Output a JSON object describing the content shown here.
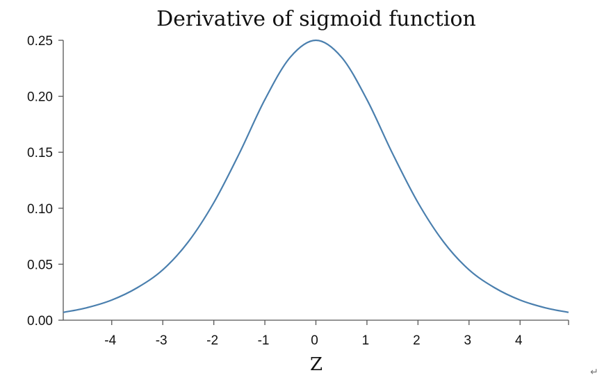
{
  "chart_data": {
    "type": "line",
    "title": "Derivative of sigmoid function",
    "xlabel": "Z",
    "ylabel": "",
    "xlim": [
      -4.95,
      4.95
    ],
    "ylim": [
      0,
      0.25
    ],
    "xticks": [
      -4,
      -3,
      -2,
      -1,
      0,
      1,
      2,
      3,
      4
    ],
    "xtick_labels": [
      "-4",
      "-3",
      "-2",
      "-1",
      "0",
      "1",
      "2",
      "3",
      "4"
    ],
    "yticks": [
      0,
      0.05,
      0.1,
      0.15,
      0.2,
      0.25
    ],
    "ytick_labels": [
      "0.00",
      "0.05",
      "0.10",
      "0.15",
      "0.20",
      "0.25"
    ],
    "grid": false,
    "line_color": "#4a7fae",
    "series": [
      {
        "x": [
          -4.95,
          -4.5,
          -4,
          -3.5,
          -3,
          -2.5,
          -2,
          -1.5,
          -1,
          -0.5,
          0,
          0.5,
          1,
          1.5,
          2,
          2.5,
          3,
          3.5,
          4,
          4.5,
          4.95
        ],
        "values": [
          0.007,
          0.011,
          0.018,
          0.029,
          0.045,
          0.07,
          0.105,
          0.149,
          0.197,
          0.235,
          0.25,
          0.235,
          0.197,
          0.149,
          0.105,
          0.07,
          0.045,
          0.029,
          0.018,
          0.011,
          0.007
        ]
      }
    ]
  },
  "page": {
    "return_mark": "↵"
  }
}
